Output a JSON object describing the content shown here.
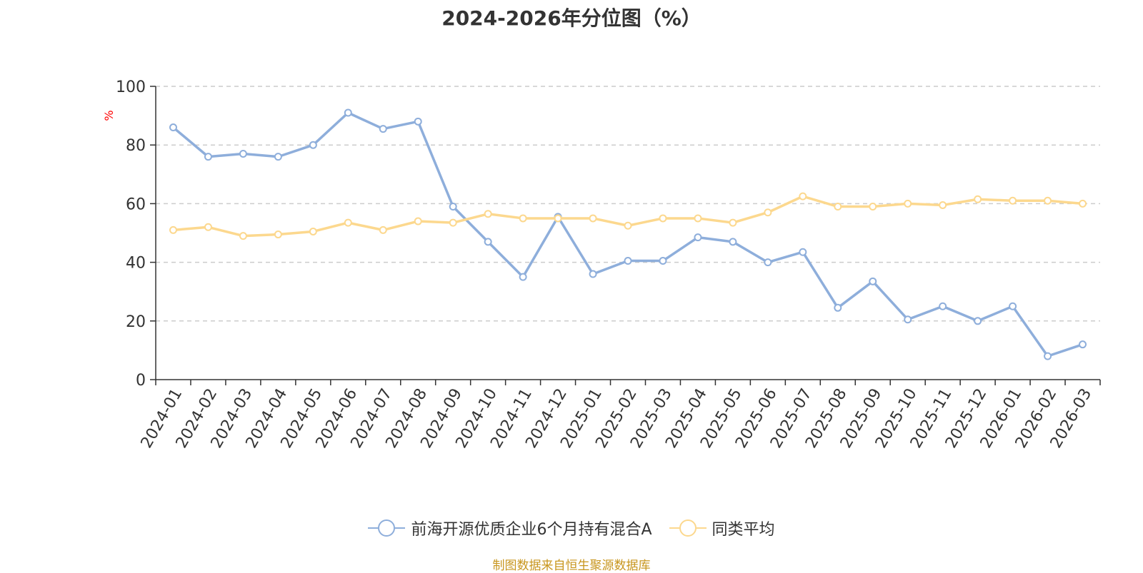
{
  "chart_data": {
    "type": "line",
    "title": "2024-2026年分位图（%）",
    "ylabel": "%",
    "xlabel": "",
    "ylim": [
      0,
      100
    ],
    "yticks": [
      0,
      20,
      40,
      60,
      80,
      100
    ],
    "grid": true,
    "legend_position": "bottom-center",
    "categories": [
      "2024-01",
      "2024-02",
      "2024-03",
      "2024-04",
      "2024-05",
      "2024-06",
      "2024-07",
      "2024-08",
      "2024-09",
      "2024-10",
      "2024-11",
      "2024-12",
      "2025-01",
      "2025-02",
      "2025-03",
      "2025-04",
      "2025-05",
      "2025-06",
      "2025-07",
      "2025-08",
      "2025-09",
      "2025-10",
      "2025-11",
      "2025-12",
      "2026-01",
      "2026-02",
      "2026-03"
    ],
    "series": [
      {
        "name": "前海开源优质企业6个月持有混合A",
        "color": "#8eaedb",
        "values": [
          86,
          76,
          77,
          76,
          80,
          91,
          85.5,
          88,
          59,
          47,
          35,
          55.5,
          36,
          40.5,
          40.5,
          48.5,
          47,
          40,
          43.5,
          24.5,
          33.5,
          20.5,
          25,
          20,
          25,
          8,
          12
        ]
      },
      {
        "name": "同类平均",
        "color": "#fcd88e",
        "values": [
          51,
          52,
          49,
          49.5,
          50.5,
          53.5,
          51,
          54,
          53.5,
          56.5,
          55,
          55,
          55,
          52.5,
          55,
          55,
          53.5,
          57,
          62.5,
          59,
          59,
          60,
          59.5,
          61.5,
          61,
          61,
          60
        ]
      }
    ]
  },
  "source_text": "制图数据来自恒生聚源数据库",
  "source_color": "#c8961e",
  "unit_color": "#ff0000"
}
